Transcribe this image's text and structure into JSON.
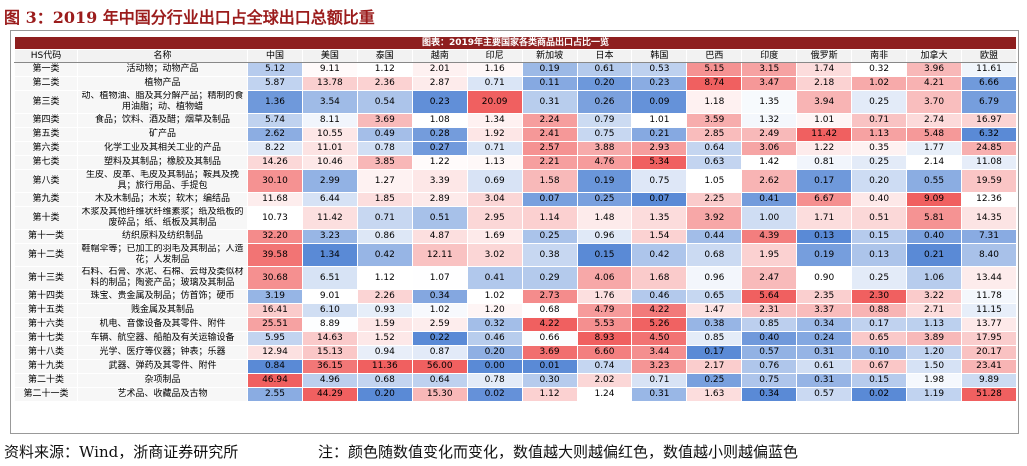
{
  "header": {
    "title": "图 3：2019 年中国分行业出口占全球出口总额比重"
  },
  "table": {
    "caption": "图表：2019年主要国家各类商品出口占比一览",
    "columns": [
      "HS代码",
      "名称",
      "中国",
      "美国",
      "泰国",
      "越南",
      "印尼",
      "新加坡",
      "日本",
      "韩国",
      "巴西",
      "印度",
      "俄罗斯",
      "南非",
      "加拿大",
      "欧盟"
    ],
    "rows": [
      [
        "第一类",
        "活动物；动物产品",
        "5.12",
        "9.11",
        "1.12",
        "2.01",
        "1.16",
        "0.19",
        "0.61",
        "0.53",
        "5.15",
        "3.15",
        "1.74",
        "0.32",
        "3.96",
        "11.61"
      ],
      [
        "第二类",
        "植物产品",
        "5.87",
        "13.78",
        "2.36",
        "2.87",
        "0.71",
        "0.11",
        "0.20",
        "0.23",
        "8.74",
        "3.47",
        "2.18",
        "1.02",
        "4.21",
        "6.66"
      ],
      [
        "第三类",
        "动、植物油、脂及其分解产品；精制的食用油脂；动、植物蜡",
        "1.36",
        "3.54",
        "0.54",
        "0.23",
        "20.09",
        "0.31",
        "0.26",
        "0.09",
        "1.18",
        "1.35",
        "3.94",
        "0.25",
        "3.70",
        "6.79"
      ],
      [
        "第四类",
        "食品；饮料、酒及醋；烟草及制品",
        "5.74",
        "8.11",
        "3.69",
        "1.08",
        "1.34",
        "2.24",
        "0.79",
        "1.01",
        "3.59",
        "1.32",
        "1.01",
        "0.71",
        "2.74",
        "16.97"
      ],
      [
        "第五类",
        "矿产品",
        "2.62",
        "10.55",
        "0.49",
        "0.28",
        "1.92",
        "2.41",
        "0.75",
        "0.21",
        "2.85",
        "2.49",
        "11.42",
        "1.13",
        "5.48",
        "6.32"
      ],
      [
        "第六类",
        "化学工业及其相关工业的产品",
        "8.22",
        "11.01",
        "0.78",
        "0.27",
        "0.71",
        "2.57",
        "3.88",
        "2.93",
        "0.64",
        "3.06",
        "1.22",
        "0.35",
        "1.77",
        "24.85"
      ],
      [
        "第七类",
        "塑料及其制品；橡胶及其制品",
        "14.26",
        "10.46",
        "3.85",
        "1.22",
        "1.13",
        "2.21",
        "4.76",
        "5.34",
        "0.63",
        "1.42",
        "0.81",
        "0.25",
        "2.14",
        "11.08"
      ],
      [
        "第八类",
        "生皮、皮革、毛皮及其制品；鞍具及挽具；旅行用品、手提包",
        "30.10",
        "2.99",
        "1.27",
        "3.39",
        "0.69",
        "1.58",
        "0.19",
        "0.75",
        "1.05",
        "2.62",
        "0.17",
        "0.20",
        "0.55",
        "19.59"
      ],
      [
        "第九类",
        "木及木制品；木炭；软木；编结品",
        "11.68",
        "6.44",
        "1.85",
        "2.89",
        "3.04",
        "0.07",
        "0.25",
        "0.07",
        "2.25",
        "0.41",
        "6.67",
        "0.40",
        "9.09",
        "12.36"
      ],
      [
        "第十类",
        "木浆及其他纤维状纤维素浆；纸及纸板的废碎品；纸、纸板及其制品",
        "10.73",
        "11.42",
        "0.71",
        "0.51",
        "2.95",
        "1.14",
        "1.48",
        "1.35",
        "3.92",
        "1.00",
        "1.71",
        "0.51",
        "5.81",
        "14.35"
      ],
      [
        "第十一类",
        "纺织原料及纺织制品",
        "32.20",
        "3.23",
        "0.86",
        "4.87",
        "1.69",
        "0.25",
        "0.96",
        "1.54",
        "0.44",
        "4.39",
        "0.13",
        "0.15",
        "0.40",
        "7.31"
      ],
      [
        "第十二类",
        "鞋帽伞等；已加工的羽毛及其制品；人造花；人发制品",
        "39.58",
        "1.34",
        "0.42",
        "12.11",
        "3.02",
        "0.38",
        "0.15",
        "0.42",
        "0.68",
        "1.95",
        "0.19",
        "0.13",
        "0.21",
        "8.40"
      ],
      [
        "第十三类",
        "石料、石膏、水泥、石棉、云母及类似材料的制品；陶瓷产品；玻璃及其制品",
        "30.68",
        "6.51",
        "1.12",
        "1.07",
        "0.41",
        "0.29",
        "4.06",
        "1.68",
        "0.96",
        "2.47",
        "0.90",
        "0.25",
        "1.06",
        "13.44"
      ],
      [
        "第十四类",
        "珠宝、贵金属及制品；仿首饰；硬币",
        "3.19",
        "9.01",
        "2.26",
        "0.34",
        "1.02",
        "2.73",
        "1.76",
        "0.46",
        "0.65",
        "5.64",
        "2.35",
        "2.30",
        "3.22",
        "11.78"
      ],
      [
        "第十五类",
        "贱金属及其制品",
        "16.41",
        "6.10",
        "0.93",
        "1.02",
        "1.20",
        "0.68",
        "4.79",
        "4.22",
        "1.47",
        "2.31",
        "3.37",
        "0.88",
        "2.71",
        "11.15"
      ],
      [
        "第十六类",
        "机电、音像设备及其零件、附件",
        "25.51",
        "8.89",
        "1.59",
        "2.59",
        "0.32",
        "4.22",
        "5.53",
        "5.26",
        "0.38",
        "0.85",
        "0.34",
        "0.17",
        "1.13",
        "13.77"
      ],
      [
        "第十七类",
        "车辆、航空器、船舶及有关运输设备",
        "5.95",
        "14.63",
        "1.52",
        "0.22",
        "0.46",
        "0.66",
        "8.93",
        "4.50",
        "0.85",
        "0.40",
        "0.24",
        "0.65",
        "3.89",
        "17.95"
      ],
      [
        "第十八类",
        "光学、医疗等仪器；钟表；乐器",
        "12.94",
        "15.13",
        "0.94",
        "0.87",
        "0.20",
        "3.69",
        "6.60",
        "3.44",
        "0.17",
        "0.57",
        "0.31",
        "0.10",
        "1.20",
        "20.17"
      ],
      [
        "第十九类",
        "武器、弹药及其零件、附件",
        "0.84",
        "36.15",
        "11.36",
        "56.00",
        "0.00",
        "0.01",
        "0.74",
        "3.23",
        "2.17",
        "0.76",
        "0.61",
        "0.67",
        "1.50",
        "23.41"
      ],
      [
        "第二十类",
        "杂项制品",
        "46.94",
        "4.96",
        "0.68",
        "0.64",
        "0.78",
        "0.30",
        "2.02",
        "0.71",
        "0.25",
        "0.75",
        "0.31",
        "0.15",
        "1.98",
        "9.89"
      ],
      [
        "第二十一类",
        "艺术品、收藏品及古物",
        "2.55",
        "44.29",
        "0.20",
        "15.30",
        "0.02",
        "1.12",
        "1.24",
        "0.31",
        "1.63",
        "0.34",
        "0.57",
        "0.02",
        "1.19",
        "51.28"
      ]
    ]
  },
  "footer": {
    "source": "资料来源：Wind，浙商证券研究所",
    "note": "注：颜色随数值变化而变化，数值越大则越偏红色，数值越小则越偏蓝色"
  }
}
